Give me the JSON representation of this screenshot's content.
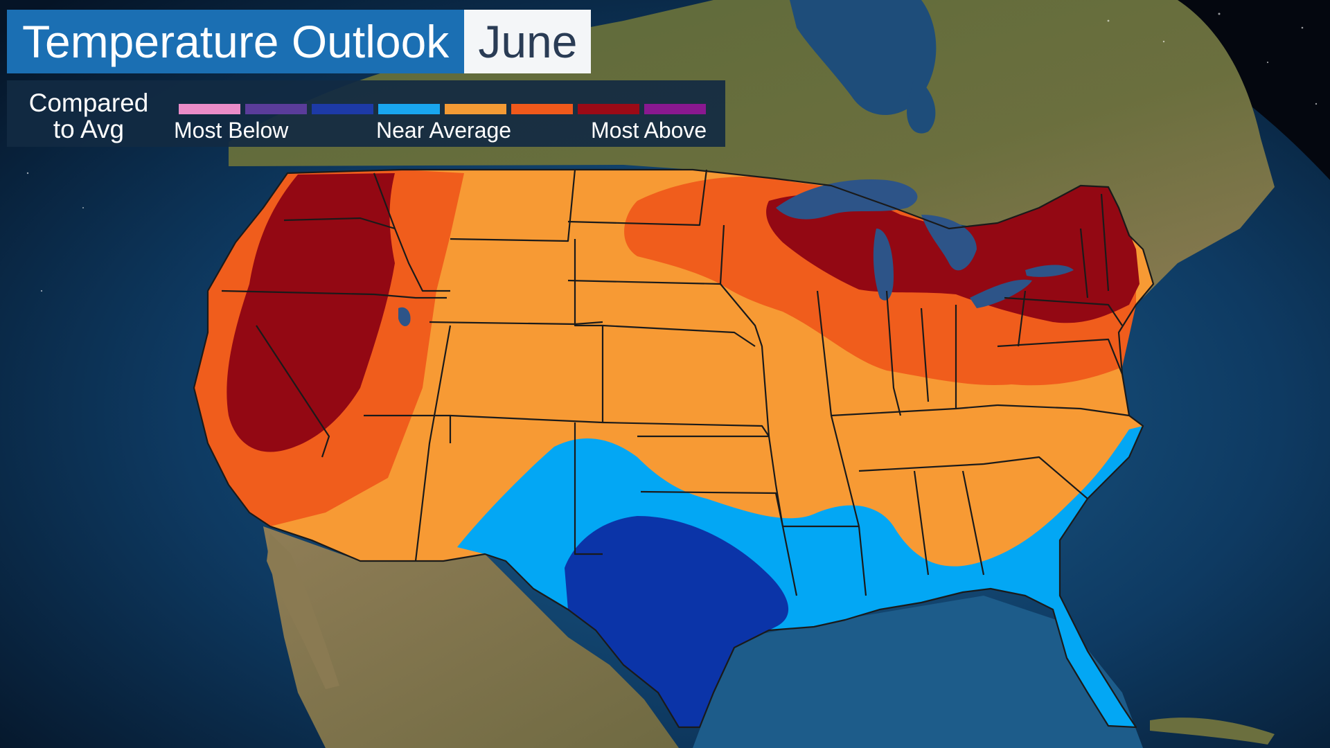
{
  "title": "Temperature Outlook",
  "month": "June",
  "legend": {
    "caption_line1": "Compared",
    "caption_line2": "to Avg",
    "label_below": "Most Below",
    "label_near": "Near Average",
    "label_above": "Most Above",
    "swatches": [
      {
        "name": "pink",
        "color": "#ea8cc8"
      },
      {
        "name": "violet",
        "color": "#5a3c9a"
      },
      {
        "name": "dark-blue",
        "color": "#1d3aa6"
      },
      {
        "name": "light-blue",
        "color": "#19a6ef"
      },
      {
        "name": "light-orange",
        "color": "#f49b35"
      },
      {
        "name": "orange",
        "color": "#f0591b"
      },
      {
        "name": "dark-red",
        "color": "#9b0a16"
      },
      {
        "name": "purple",
        "color": "#8a1890"
      }
    ]
  },
  "map_colors": {
    "ocean": "#0b2a48",
    "land": "#4f5a34",
    "dark_red": "#930813",
    "orange": "#f05d1c",
    "light_orange": "#f79a34",
    "light_blue": "#03a7f4",
    "dark_blue": "#0b34a8",
    "lakes": "#2d5488"
  }
}
